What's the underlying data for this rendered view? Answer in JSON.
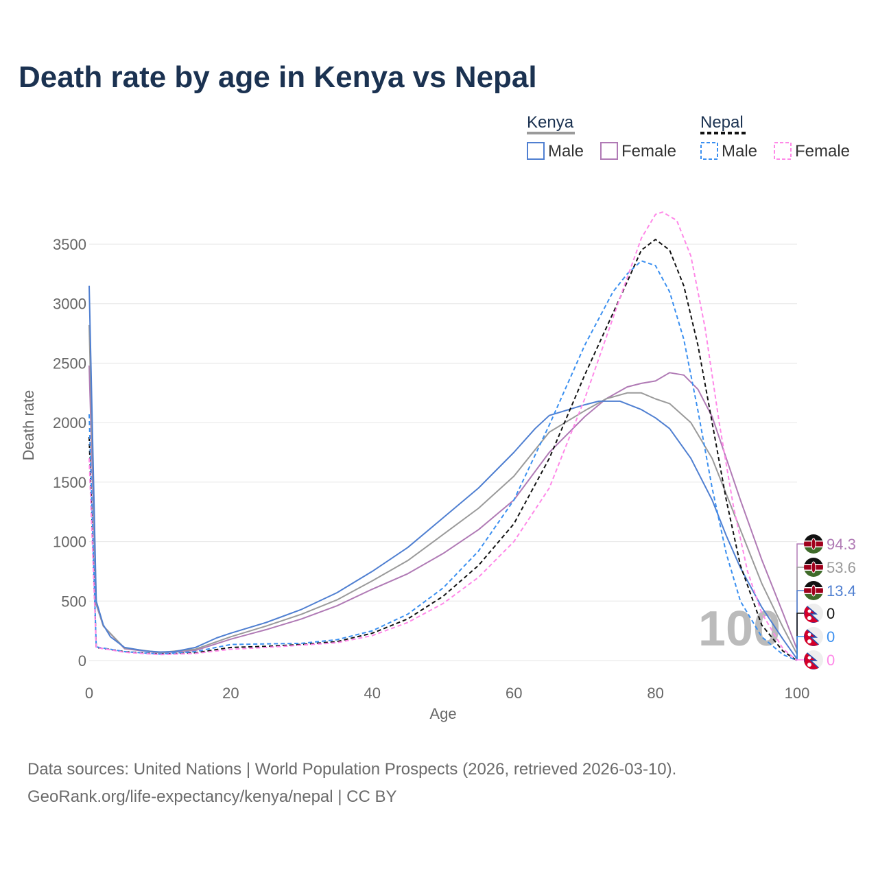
{
  "title": "Death rate by age in Kenya vs Nepal",
  "legend": {
    "groups": [
      {
        "name": "Kenya",
        "items": [
          "Male",
          "Female"
        ]
      },
      {
        "name": "Nepal",
        "items": [
          "Male",
          "Female"
        ]
      }
    ]
  },
  "watermark": "100",
  "footer": {
    "line1": "Data sources: United Nations | World Population Prospects (2026, retrieved 2026-03-10).",
    "line2": "GeoRank.org/life-expectancy/kenya/nepal | CC BY"
  },
  "chart_data": {
    "type": "line",
    "title": "Death rate by age in Kenya vs Nepal",
    "xlabel": "Age",
    "ylabel": "Death rate",
    "xlim": [
      0,
      100
    ],
    "ylim": [
      0,
      3800
    ],
    "xticks": [
      0,
      20,
      40,
      60,
      80,
      100
    ],
    "yticks": [
      0,
      500,
      1000,
      1500,
      2000,
      2500,
      3000,
      3500
    ],
    "grid": true,
    "legend_position": "top-right",
    "series": [
      {
        "name": "Kenya Female",
        "country": "Kenya",
        "color": "#b07ab5",
        "dash": false,
        "end_label": "94.3",
        "x": [
          0,
          1,
          2,
          5,
          10,
          15,
          20,
          25,
          30,
          35,
          40,
          45,
          50,
          55,
          60,
          65,
          70,
          73,
          76,
          78,
          80,
          82,
          84,
          86,
          88,
          90,
          92,
          95,
          98,
          100
        ],
        "y": [
          2480,
          470,
          290,
          100,
          65,
          85,
          180,
          260,
          350,
          460,
          600,
          730,
          900,
          1100,
          1350,
          1750,
          2050,
          2200,
          2300,
          2330,
          2350,
          2420,
          2400,
          2280,
          2050,
          1700,
          1350,
          850,
          400,
          94.3
        ]
      },
      {
        "name": "Kenya Total",
        "country": "Kenya",
        "color": "#9a9a9a",
        "dash": false,
        "end_label": "53.6",
        "x": [
          0,
          1,
          2,
          5,
          10,
          15,
          20,
          25,
          30,
          35,
          40,
          45,
          50,
          55,
          60,
          65,
          70,
          73,
          76,
          78,
          80,
          82,
          85,
          88,
          90,
          92,
          95,
          98,
          100
        ],
        "y": [
          2820,
          480,
          290,
          105,
          68,
          95,
          200,
          290,
          390,
          510,
          670,
          840,
          1060,
          1280,
          1550,
          1920,
          2100,
          2200,
          2250,
          2250,
          2200,
          2160,
          2000,
          1700,
          1400,
          1100,
          650,
          280,
          53.6
        ]
      },
      {
        "name": "Kenya Male",
        "country": "Kenya",
        "color": "#4f7fd1",
        "dash": false,
        "end_label": "13.4",
        "x": [
          0,
          1,
          2,
          3,
          5,
          8,
          10,
          12,
          15,
          18,
          20,
          25,
          30,
          35,
          40,
          45,
          50,
          55,
          60,
          63,
          65,
          70,
          72,
          75,
          78,
          80,
          82,
          85,
          88,
          90,
          92,
          95,
          98,
          100
        ],
        "y": [
          3150,
          500,
          300,
          200,
          110,
          80,
          72,
          75,
          110,
          190,
          230,
          320,
          430,
          570,
          750,
          950,
          1200,
          1450,
          1750,
          1950,
          2060,
          2150,
          2180,
          2180,
          2110,
          2040,
          1950,
          1700,
          1350,
          1050,
          780,
          450,
          180,
          13.4
        ]
      },
      {
        "name": "Nepal Total",
        "country": "Nepal",
        "color": "#111111",
        "dash": true,
        "end_label": "0",
        "x": [
          0,
          1,
          5,
          10,
          15,
          20,
          25,
          30,
          35,
          40,
          45,
          50,
          55,
          60,
          65,
          70,
          75,
          78,
          80,
          82,
          84,
          86,
          88,
          90,
          92,
          95,
          98,
          100
        ],
        "y": [
          1880,
          110,
          75,
          55,
          65,
          110,
          120,
          135,
          160,
          230,
          350,
          540,
          800,
          1150,
          1700,
          2400,
          3050,
          3450,
          3540,
          3450,
          3150,
          2650,
          2000,
          1350,
          800,
          300,
          80,
          0
        ]
      },
      {
        "name": "Nepal Male",
        "country": "Nepal",
        "color": "#3a8ff0",
        "dash": true,
        "end_label": "0",
        "x": [
          0,
          1,
          5,
          10,
          15,
          20,
          25,
          30,
          35,
          40,
          45,
          50,
          55,
          60,
          65,
          70,
          74,
          76,
          78,
          80,
          82,
          84,
          86,
          88,
          90,
          92,
          95,
          98,
          100
        ],
        "y": [
          2070,
          115,
          75,
          55,
          75,
          135,
          140,
          145,
          175,
          250,
          390,
          610,
          920,
          1350,
          1980,
          2650,
          3100,
          3250,
          3360,
          3320,
          3100,
          2700,
          2100,
          1450,
          900,
          500,
          200,
          50,
          0
        ]
      },
      {
        "name": "Nepal Female",
        "country": "Nepal",
        "color": "#ff88e8",
        "dash": true,
        "end_label": "0",
        "x": [
          0,
          1,
          5,
          10,
          15,
          20,
          25,
          30,
          35,
          40,
          45,
          50,
          55,
          60,
          65,
          70,
          75,
          78,
          80,
          81,
          83,
          85,
          87,
          89,
          91,
          93,
          95,
          98,
          100
        ],
        "y": [
          1700,
          110,
          70,
          50,
          60,
          95,
          110,
          130,
          150,
          210,
          320,
          480,
          700,
          1000,
          1450,
          2200,
          3050,
          3550,
          3750,
          3770,
          3700,
          3400,
          2800,
          2000,
          1300,
          750,
          400,
          100,
          0
        ]
      }
    ]
  }
}
